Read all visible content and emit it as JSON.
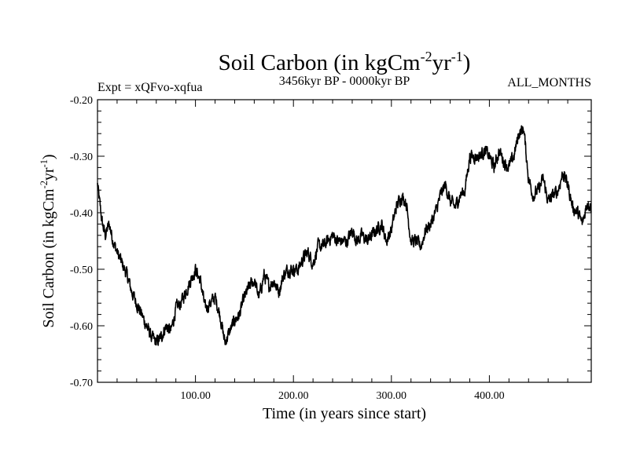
{
  "chart_data": {
    "type": "line",
    "title": {
      "main": "Soil Carbon (in kgCm",
      "exp1": "-2",
      "mid": "yr",
      "exp2": "-1",
      "end": ")"
    },
    "subtitle_left": "Expt = xQFvo-xqfua",
    "subtitle_center": "3456kyr BP - 0000kyr BP",
    "subtitle_right": "ALL_MONTHS",
    "xlabel": "Time (in years since start)",
    "ylabel": {
      "main": "Soil Carbon (in kgCm",
      "exp1": "-2",
      "mid": "yr",
      "exp2": "-1",
      "end": ")"
    },
    "xlim": [
      0,
      504
    ],
    "ylim": [
      -0.7,
      -0.2
    ],
    "x_ticks": [
      100,
      200,
      300,
      400
    ],
    "x_tick_labels": [
      "100.00",
      "200.00",
      "300.00",
      "400.00"
    ],
    "y_ticks": [
      -0.7,
      -0.6,
      -0.5,
      -0.4,
      -0.3,
      -0.2
    ],
    "y_tick_labels": [
      "-0.70",
      "-0.60",
      "-0.50",
      "-0.40",
      "-0.30",
      "-0.20"
    ],
    "series": [
      {
        "name": "Soil Carbon",
        "x": [
          0,
          2,
          5,
          8,
          12,
          16,
          20,
          25,
          30,
          35,
          40,
          45,
          50,
          55,
          60,
          65,
          70,
          75,
          80,
          85,
          90,
          95,
          100,
          105,
          110,
          115,
          120,
          125,
          130,
          135,
          140,
          145,
          150,
          155,
          160,
          165,
          170,
          175,
          180,
          185,
          190,
          195,
          200,
          205,
          210,
          215,
          220,
          225,
          230,
          235,
          240,
          245,
          250,
          255,
          260,
          265,
          270,
          275,
          280,
          285,
          290,
          295,
          300,
          305,
          310,
          315,
          320,
          325,
          330,
          335,
          340,
          345,
          350,
          355,
          360,
          365,
          370,
          375,
          380,
          385,
          390,
          395,
          400,
          405,
          410,
          415,
          420,
          425,
          430,
          435,
          440,
          445,
          450,
          455,
          460,
          465,
          470,
          475,
          480,
          485,
          490,
          495,
          500,
          504
        ],
        "values": [
          -0.35,
          -0.38,
          -0.42,
          -0.44,
          -0.42,
          -0.45,
          -0.47,
          -0.49,
          -0.51,
          -0.54,
          -0.56,
          -0.58,
          -0.6,
          -0.62,
          -0.63,
          -0.62,
          -0.6,
          -0.61,
          -0.57,
          -0.56,
          -0.54,
          -0.52,
          -0.5,
          -0.52,
          -0.57,
          -0.56,
          -0.55,
          -0.58,
          -0.63,
          -0.61,
          -0.59,
          -0.58,
          -0.55,
          -0.53,
          -0.52,
          -0.55,
          -0.51,
          -0.53,
          -0.52,
          -0.54,
          -0.51,
          -0.5,
          -0.5,
          -0.5,
          -0.48,
          -0.47,
          -0.49,
          -0.46,
          -0.46,
          -0.45,
          -0.44,
          -0.45,
          -0.45,
          -0.45,
          -0.43,
          -0.45,
          -0.44,
          -0.45,
          -0.44,
          -0.43,
          -0.42,
          -0.45,
          -0.43,
          -0.39,
          -0.37,
          -0.38,
          -0.45,
          -0.45,
          -0.46,
          -0.43,
          -0.42,
          -0.4,
          -0.37,
          -0.35,
          -0.38,
          -0.39,
          -0.37,
          -0.36,
          -0.3,
          -0.3,
          -0.3,
          -0.29,
          -0.3,
          -0.32,
          -0.29,
          -0.31,
          -0.32,
          -0.3,
          -0.26,
          -0.25,
          -0.34,
          -0.37,
          -0.36,
          -0.34,
          -0.38,
          -0.37,
          -0.36,
          -0.33,
          -0.35,
          -0.39,
          -0.4,
          -0.42,
          -0.38,
          -0.39
        ]
      }
    ],
    "line_color": "#000000"
  }
}
